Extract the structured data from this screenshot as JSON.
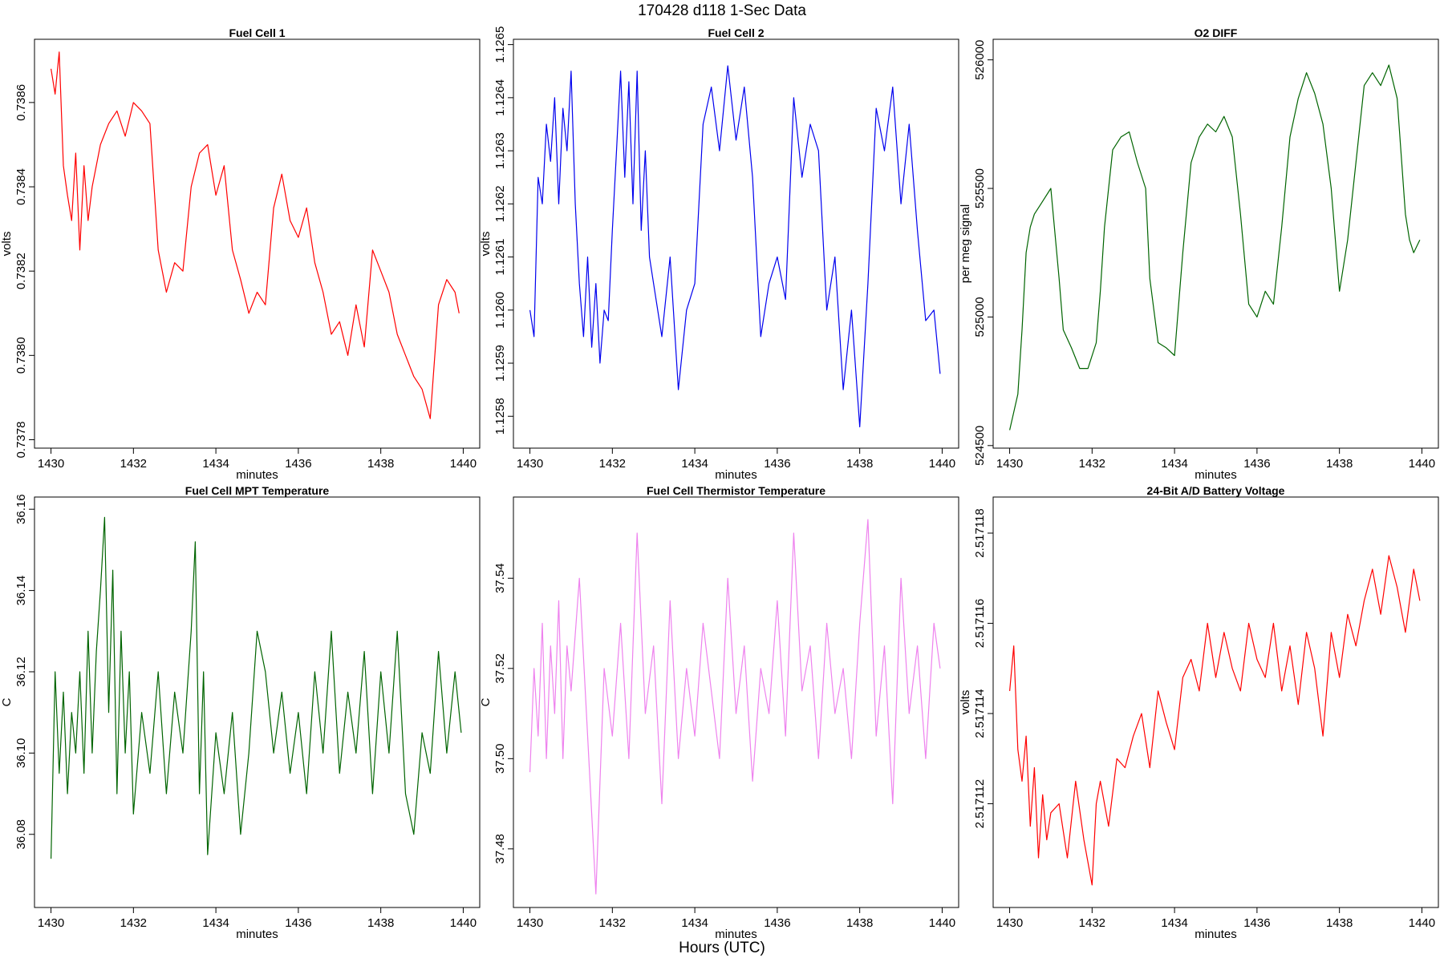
{
  "figure": {
    "title": "170428   d118   1-Sec Data",
    "xlabel": "Hours (UTC)"
  },
  "chart_data": [
    {
      "type": "line",
      "title": "Fuel Cell 1",
      "xlabel": "minutes",
      "ylabel": "volts",
      "xlim": [
        1429.6,
        1440.4
      ],
      "ylim": [
        0.73778,
        0.73875
      ],
      "xticks": [
        1430,
        1432,
        1434,
        1436,
        1438,
        1440
      ],
      "xtick_labels": [
        "1430",
        "1432",
        "1434",
        "1436",
        "1438",
        "1440"
      ],
      "yticks": [
        0.7378,
        0.738,
        0.7382,
        0.7384,
        0.7386
      ],
      "ytick_labels": [
        "0.7378",
        "0.7380",
        "0.7382",
        "0.7384",
        "0.7386"
      ],
      "color": "#ff0000",
      "series": [
        {
          "x": [
            1430.0,
            1430.1,
            1430.2,
            1430.3,
            1430.4,
            1430.5,
            1430.6,
            1430.7,
            1430.8,
            1430.9,
            1431.0,
            1431.2,
            1431.4,
            1431.6,
            1431.8,
            1432.0,
            1432.2,
            1432.4,
            1432.6,
            1432.8,
            1433.0,
            1433.2,
            1433.4,
            1433.6,
            1433.8,
            1434.0,
            1434.2,
            1434.4,
            1434.6,
            1434.8,
            1435.0,
            1435.2,
            1435.4,
            1435.6,
            1435.8,
            1436.0,
            1436.2,
            1436.4,
            1436.6,
            1436.8,
            1437.0,
            1437.2,
            1437.4,
            1437.6,
            1437.8,
            1438.0,
            1438.2,
            1438.4,
            1438.6,
            1438.8,
            1439.0,
            1439.2,
            1439.4,
            1439.6,
            1439.8,
            1439.9
          ],
          "y": [
            0.73868,
            0.73862,
            0.73872,
            0.73845,
            0.73838,
            0.73832,
            0.73848,
            0.73825,
            0.73845,
            0.73832,
            0.7384,
            0.7385,
            0.73855,
            0.73858,
            0.73852,
            0.7386,
            0.73858,
            0.73855,
            0.73825,
            0.73815,
            0.73822,
            0.7382,
            0.7384,
            0.73848,
            0.7385,
            0.73838,
            0.73845,
            0.73825,
            0.73818,
            0.7381,
            0.73815,
            0.73812,
            0.73835,
            0.73843,
            0.73832,
            0.73828,
            0.73835,
            0.73822,
            0.73815,
            0.73805,
            0.73808,
            0.738,
            0.73812,
            0.73802,
            0.73825,
            0.7382,
            0.73815,
            0.73805,
            0.738,
            0.73795,
            0.73792,
            0.73785,
            0.73812,
            0.73818,
            0.73815,
            0.7381
          ]
        }
      ]
    },
    {
      "type": "line",
      "title": "Fuel Cell 2",
      "xlabel": "minutes",
      "ylabel": "volts",
      "xlim": [
        1429.6,
        1440.4
      ],
      "ylim": [
        1.12574,
        1.12651
      ],
      "xticks": [
        1430,
        1432,
        1434,
        1436,
        1438,
        1440
      ],
      "xtick_labels": [
        "1430",
        "1432",
        "1434",
        "1436",
        "1438",
        "1440"
      ],
      "yticks": [
        1.1258,
        1.1259,
        1.126,
        1.1261,
        1.1262,
        1.1263,
        1.1264,
        1.1265
      ],
      "ytick_labels": [
        "1.1258",
        "1.1259",
        "1.1260",
        "1.1261",
        "1.1262",
        "1.1263",
        "1.1264",
        "1.1265"
      ],
      "color": "#0000ee",
      "series": [
        {
          "x": [
            1430.0,
            1430.1,
            1430.2,
            1430.3,
            1430.4,
            1430.5,
            1430.6,
            1430.7,
            1430.8,
            1430.9,
            1431.0,
            1431.1,
            1431.2,
            1431.3,
            1431.4,
            1431.5,
            1431.6,
            1431.7,
            1431.8,
            1431.9,
            1432.0,
            1432.1,
            1432.2,
            1432.3,
            1432.4,
            1432.5,
            1432.6,
            1432.7,
            1432.8,
            1432.9,
            1433.0,
            1433.2,
            1433.4,
            1433.6,
            1433.8,
            1434.0,
            1434.2,
            1434.4,
            1434.6,
            1434.8,
            1435.0,
            1435.2,
            1435.4,
            1435.6,
            1435.8,
            1436.0,
            1436.2,
            1436.4,
            1436.6,
            1436.8,
            1437.0,
            1437.2,
            1437.4,
            1437.6,
            1437.8,
            1438.0,
            1438.2,
            1438.4,
            1438.6,
            1438.8,
            1439.0,
            1439.2,
            1439.4,
            1439.6,
            1439.8,
            1439.95
          ],
          "y": [
            1.126,
            1.12595,
            1.12625,
            1.1262,
            1.12635,
            1.12628,
            1.1264,
            1.1262,
            1.12638,
            1.1263,
            1.12645,
            1.1262,
            1.12605,
            1.12595,
            1.1261,
            1.12593,
            1.12605,
            1.1259,
            1.126,
            1.12598,
            1.12615,
            1.1263,
            1.12645,
            1.12625,
            1.12643,
            1.1262,
            1.12645,
            1.12615,
            1.1263,
            1.1261,
            1.12605,
            1.12595,
            1.1261,
            1.12585,
            1.126,
            1.12605,
            1.12635,
            1.12642,
            1.1263,
            1.12646,
            1.12632,
            1.12642,
            1.12625,
            1.12595,
            1.12605,
            1.1261,
            1.12602,
            1.1264,
            1.12625,
            1.12635,
            1.1263,
            1.126,
            1.1261,
            1.12585,
            1.126,
            1.12578,
            1.12605,
            1.12638,
            1.1263,
            1.12642,
            1.1262,
            1.12635,
            1.12615,
            1.12598,
            1.126,
            1.12588
          ]
        }
      ]
    },
    {
      "type": "line",
      "title": "O2 DIFF",
      "xlabel": "minutes",
      "ylabel": "per meg signal",
      "xlim": [
        1429.6,
        1440.4
      ],
      "ylim": [
        524490,
        526080
      ],
      "xticks": [
        1430,
        1432,
        1434,
        1436,
        1438,
        1440
      ],
      "xtick_labels": [
        "1430",
        "1432",
        "1434",
        "1436",
        "1438",
        "1440"
      ],
      "yticks": [
        524500,
        525000,
        525500,
        526000
      ],
      "ytick_labels": [
        "524500",
        "525000",
        "525500",
        "526000"
      ],
      "color": "#006400",
      "series": [
        {
          "x": [
            1430.0,
            1430.1,
            1430.2,
            1430.3,
            1430.4,
            1430.5,
            1430.6,
            1430.8,
            1431.0,
            1431.2,
            1431.3,
            1431.5,
            1431.7,
            1431.9,
            1432.1,
            1432.2,
            1432.3,
            1432.5,
            1432.7,
            1432.9,
            1433.1,
            1433.3,
            1433.4,
            1433.6,
            1433.8,
            1434.0,
            1434.2,
            1434.4,
            1434.6,
            1434.8,
            1435.0,
            1435.2,
            1435.4,
            1435.6,
            1435.8,
            1436.0,
            1436.2,
            1436.4,
            1436.6,
            1436.8,
            1437.0,
            1437.2,
            1437.4,
            1437.6,
            1437.8,
            1438.0,
            1438.2,
            1438.4,
            1438.6,
            1438.8,
            1439.0,
            1439.2,
            1439.4,
            1439.6,
            1439.7,
            1439.8,
            1439.95
          ],
          "y": [
            524560,
            524630,
            524700,
            524950,
            525250,
            525350,
            525400,
            525450,
            525500,
            525150,
            524950,
            524880,
            524800,
            524800,
            524900,
            525100,
            525350,
            525650,
            525700,
            525720,
            525600,
            525500,
            525150,
            524900,
            524880,
            524850,
            525250,
            525600,
            525700,
            525750,
            525720,
            525780,
            525700,
            525400,
            525050,
            525000,
            525100,
            525050,
            525350,
            525700,
            525850,
            525950,
            525870,
            525750,
            525500,
            525100,
            525300,
            525600,
            525900,
            525950,
            525900,
            525980,
            525850,
            525400,
            525300,
            525250,
            525300
          ]
        }
      ]
    },
    {
      "type": "line",
      "title": "Fuel Cell MPT Temperature",
      "xlabel": "minutes",
      "ylabel": "C",
      "xlim": [
        1429.6,
        1440.4
      ],
      "ylim": [
        36.062,
        36.163
      ],
      "xticks": [
        1430,
        1432,
        1434,
        1436,
        1438,
        1440
      ],
      "xtick_labels": [
        "1430",
        "1432",
        "1434",
        "1436",
        "1438",
        "1440"
      ],
      "yticks": [
        36.08,
        36.1,
        36.12,
        36.14,
        36.16
      ],
      "ytick_labels": [
        "36.08",
        "36.10",
        "36.12",
        "36.14",
        "36.16"
      ],
      "color": "#006400",
      "series": [
        {
          "x": [
            1430.0,
            1430.1,
            1430.2,
            1430.3,
            1430.4,
            1430.5,
            1430.6,
            1430.7,
            1430.8,
            1430.9,
            1431.0,
            1431.1,
            1431.2,
            1431.3,
            1431.4,
            1431.5,
            1431.6,
            1431.7,
            1431.8,
            1431.9,
            1432.0,
            1432.2,
            1432.4,
            1432.6,
            1432.8,
            1433.0,
            1433.2,
            1433.4,
            1433.5,
            1433.6,
            1433.7,
            1433.8,
            1434.0,
            1434.2,
            1434.4,
            1434.6,
            1434.8,
            1435.0,
            1435.2,
            1435.4,
            1435.6,
            1435.8,
            1436.0,
            1436.2,
            1436.4,
            1436.6,
            1436.8,
            1437.0,
            1437.2,
            1437.4,
            1437.6,
            1437.8,
            1438.0,
            1438.2,
            1438.4,
            1438.6,
            1438.8,
            1439.0,
            1439.2,
            1439.4,
            1439.6,
            1439.8,
            1439.95
          ],
          "y": [
            36.074,
            36.12,
            36.095,
            36.115,
            36.09,
            36.11,
            36.1,
            36.12,
            36.095,
            36.13,
            36.1,
            36.125,
            36.14,
            36.158,
            36.11,
            36.145,
            36.09,
            36.13,
            36.1,
            36.12,
            36.085,
            36.11,
            36.095,
            36.12,
            36.09,
            36.115,
            36.1,
            36.13,
            36.152,
            36.09,
            36.12,
            36.075,
            36.105,
            36.09,
            36.11,
            36.08,
            36.1,
            36.13,
            36.12,
            36.1,
            36.115,
            36.095,
            36.11,
            36.09,
            36.12,
            36.1,
            36.13,
            36.095,
            36.115,
            36.1,
            36.125,
            36.09,
            36.12,
            36.1,
            36.13,
            36.09,
            36.08,
            36.105,
            36.095,
            36.125,
            36.1,
            36.12,
            36.105
          ]
        }
      ]
    },
    {
      "type": "line",
      "title": "Fuel Cell Thermistor Temperature",
      "xlabel": "minutes",
      "ylabel": "C",
      "xlim": [
        1429.6,
        1440.4
      ],
      "ylim": [
        37.467,
        37.558
      ],
      "xticks": [
        1430,
        1432,
        1434,
        1436,
        1438,
        1440
      ],
      "xtick_labels": [
        "1430",
        "1432",
        "1434",
        "1436",
        "1438",
        "1440"
      ],
      "yticks": [
        37.48,
        37.5,
        37.52,
        37.54
      ],
      "ytick_labels": [
        "37.48",
        "37.50",
        "37.52",
        "37.54"
      ],
      "color": "#ee82ee",
      "series": [
        {
          "x": [
            1430.0,
            1430.1,
            1430.2,
            1430.3,
            1430.4,
            1430.5,
            1430.6,
            1430.7,
            1430.8,
            1430.9,
            1431.0,
            1431.2,
            1431.4,
            1431.6,
            1431.8,
            1432.0,
            1432.2,
            1432.4,
            1432.6,
            1432.8,
            1433.0,
            1433.2,
            1433.4,
            1433.6,
            1433.8,
            1434.0,
            1434.2,
            1434.4,
            1434.6,
            1434.8,
            1435.0,
            1435.2,
            1435.4,
            1435.6,
            1435.8,
            1436.0,
            1436.2,
            1436.4,
            1436.6,
            1436.8,
            1437.0,
            1437.2,
            1437.4,
            1437.6,
            1437.8,
            1438.0,
            1438.2,
            1438.4,
            1438.6,
            1438.8,
            1439.0,
            1439.2,
            1439.4,
            1439.6,
            1439.8,
            1439.95
          ],
          "y": [
            37.497,
            37.52,
            37.505,
            37.53,
            37.5,
            37.525,
            37.51,
            37.535,
            37.5,
            37.525,
            37.515,
            37.54,
            37.505,
            37.47,
            37.52,
            37.505,
            37.53,
            37.5,
            37.55,
            37.51,
            37.525,
            37.49,
            37.535,
            37.5,
            37.52,
            37.505,
            37.53,
            37.515,
            37.5,
            37.54,
            37.51,
            37.525,
            37.495,
            37.52,
            37.51,
            37.535,
            37.505,
            37.55,
            37.515,
            37.525,
            37.5,
            37.53,
            37.51,
            37.52,
            37.5,
            37.53,
            37.553,
            37.505,
            37.525,
            37.49,
            37.54,
            37.51,
            37.525,
            37.5,
            37.53,
            37.52
          ]
        }
      ]
    },
    {
      "type": "line",
      "title": "24-Bit A/D Battery Voltage",
      "xlabel": "minutes",
      "ylabel": "volts",
      "xlim": [
        1429.6,
        1440.4
      ],
      "ylim": [
        2.5171097,
        2.5171188
      ],
      "xticks": [
        1430,
        1432,
        1434,
        1436,
        1438,
        1440
      ],
      "xtick_labels": [
        "1430",
        "1432",
        "1434",
        "1436",
        "1438",
        "1440"
      ],
      "yticks": [
        2.517112,
        2.517114,
        2.517116,
        2.517118
      ],
      "ytick_labels": [
        "2.517112",
        "2.517114",
        "2.517116",
        "2.517118"
      ],
      "color": "#ff0000",
      "series": [
        {
          "x": [
            1430.0,
            1430.1,
            1430.2,
            1430.3,
            1430.4,
            1430.5,
            1430.6,
            1430.7,
            1430.8,
            1430.9,
            1431.0,
            1431.2,
            1431.4,
            1431.6,
            1431.8,
            1432.0,
            1432.1,
            1432.2,
            1432.4,
            1432.6,
            1432.8,
            1433.0,
            1433.2,
            1433.4,
            1433.6,
            1433.8,
            1434.0,
            1434.2,
            1434.4,
            1434.6,
            1434.8,
            1435.0,
            1435.2,
            1435.4,
            1435.6,
            1435.8,
            1436.0,
            1436.2,
            1436.4,
            1436.6,
            1436.8,
            1437.0,
            1437.2,
            1437.4,
            1437.6,
            1437.8,
            1438.0,
            1438.2,
            1438.4,
            1438.6,
            1438.8,
            1439.0,
            1439.2,
            1439.4,
            1439.6,
            1439.8,
            1439.95
          ],
          "y": [
            2.5171145,
            2.5171155,
            2.5171132,
            2.5171125,
            2.5171135,
            2.5171115,
            2.5171128,
            2.5171108,
            2.5171122,
            2.5171112,
            2.5171118,
            2.517112,
            2.5171108,
            2.5171125,
            2.5171112,
            2.5171102,
            2.517112,
            2.5171125,
            2.5171115,
            2.517113,
            2.5171128,
            2.5171135,
            2.517114,
            2.5171128,
            2.5171145,
            2.5171138,
            2.5171132,
            2.5171148,
            2.5171152,
            2.5171145,
            2.517116,
            2.5171148,
            2.5171158,
            2.517115,
            2.5171145,
            2.517116,
            2.5171152,
            2.5171148,
            2.517116,
            2.5171145,
            2.5171155,
            2.5171142,
            2.5171158,
            2.517115,
            2.5171135,
            2.5171158,
            2.5171148,
            2.5171162,
            2.5171155,
            2.5171165,
            2.5171172,
            2.5171162,
            2.5171175,
            2.5171168,
            2.5171158,
            2.5171172,
            2.5171165
          ]
        }
      ]
    }
  ]
}
